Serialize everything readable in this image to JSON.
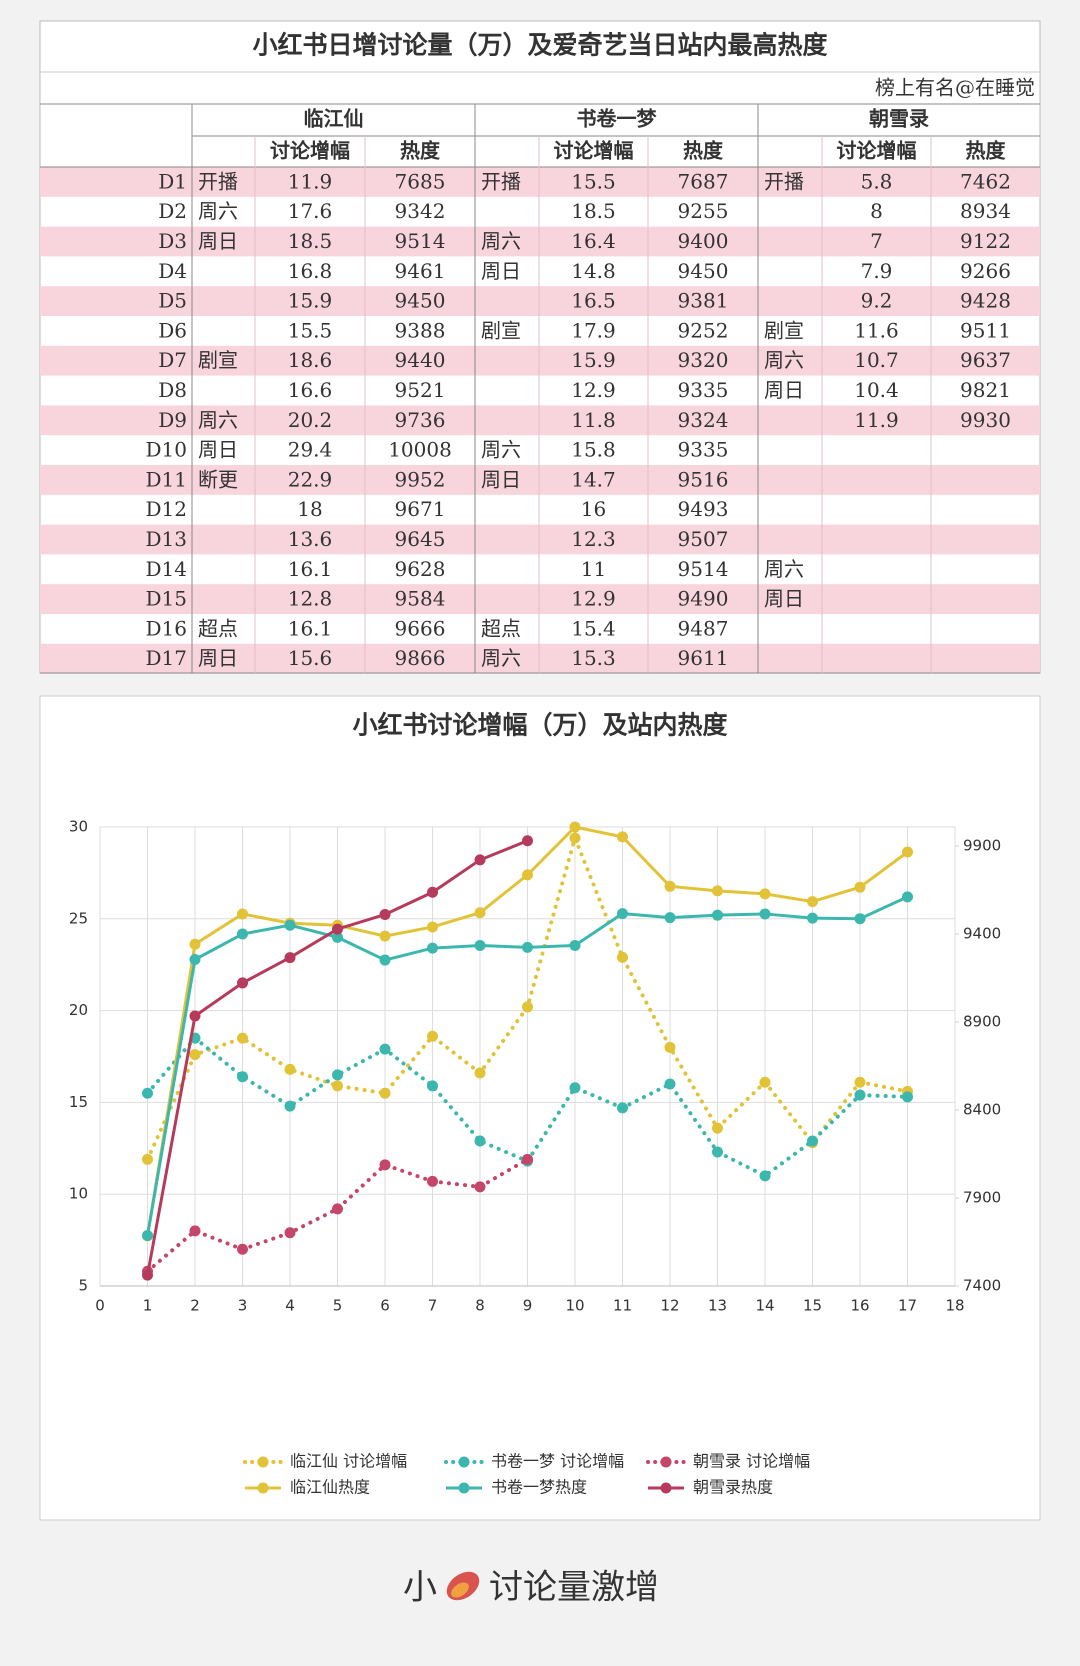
{
  "table": {
    "title": "小红书日增讨论量（万）及爱奇艺当日站内最高热度",
    "subtitle": "榜上有名@在睡觉",
    "groups": [
      "临江仙",
      "书卷一梦",
      "朝雪录"
    ],
    "subheaders": [
      "讨论增幅",
      "热度"
    ],
    "rows": [
      {
        "label": "D1",
        "cells": [
          "开播",
          11.9,
          7685,
          "开播",
          15.5,
          7687,
          "开播",
          5.8,
          7462
        ]
      },
      {
        "label": "D2",
        "cells": [
          "周六",
          17.6,
          9342,
          null,
          18.5,
          9255,
          null,
          8,
          8934
        ]
      },
      {
        "label": "D3",
        "cells": [
          "周日",
          18.5,
          9514,
          "周六",
          16.4,
          9400,
          null,
          7,
          9122
        ]
      },
      {
        "label": "D4",
        "cells": [
          null,
          16.8,
          9461,
          "周日",
          14.8,
          9450,
          null,
          7.9,
          9266
        ]
      },
      {
        "label": "D5",
        "cells": [
          null,
          15.9,
          9450,
          null,
          16.5,
          9381,
          null,
          9.2,
          9428
        ]
      },
      {
        "label": "D6",
        "cells": [
          null,
          15.5,
          9388,
          "剧宣",
          17.9,
          9252,
          "剧宣",
          11.6,
          9511
        ]
      },
      {
        "label": "D7",
        "cells": [
          "剧宣",
          18.6,
          9440,
          null,
          15.9,
          9320,
          "周六",
          10.7,
          9637
        ]
      },
      {
        "label": "D8",
        "cells": [
          null,
          16.6,
          9521,
          null,
          12.9,
          9335,
          "周日",
          10.4,
          9821
        ]
      },
      {
        "label": "D9",
        "cells": [
          "周六",
          20.2,
          9736,
          null,
          11.8,
          9324,
          null,
          11.9,
          9930
        ]
      },
      {
        "label": "D10",
        "cells": [
          "周日",
          29.4,
          10008,
          "周六",
          15.8,
          9335,
          null,
          null,
          null
        ]
      },
      {
        "label": "D11",
        "cells": [
          "断更",
          22.9,
          9952,
          "周日",
          14.7,
          9516,
          null,
          null,
          null
        ]
      },
      {
        "label": "D12",
        "cells": [
          null,
          18,
          9671,
          null,
          16,
          9493,
          null,
          null,
          null
        ]
      },
      {
        "label": "D13",
        "cells": [
          null,
          13.6,
          9645,
          null,
          12.3,
          9507,
          null,
          null,
          null
        ]
      },
      {
        "label": "D14",
        "cells": [
          null,
          16.1,
          9628,
          null,
          11,
          9514,
          "周六",
          null,
          null
        ]
      },
      {
        "label": "D15",
        "cells": [
          null,
          12.8,
          9584,
          null,
          12.9,
          9490,
          "周日",
          null,
          null
        ]
      },
      {
        "label": "D16",
        "cells": [
          "超点",
          16.1,
          9666,
          "超点",
          15.4,
          9487,
          null,
          null,
          null
        ]
      },
      {
        "label": "D17",
        "cells": [
          "周日",
          15.6,
          9866,
          "周六",
          15.3,
          9611,
          null,
          null,
          null
        ]
      }
    ]
  },
  "chart_data": {
    "type": "line",
    "title": "小红书讨论增幅（万）及站内热度",
    "x": [
      1,
      2,
      3,
      4,
      5,
      6,
      7,
      8,
      9,
      10,
      11,
      12,
      13,
      14,
      15,
      16,
      17
    ],
    "xlim": [
      0,
      18
    ],
    "xticks": [
      0,
      1,
      2,
      3,
      4,
      5,
      6,
      7,
      8,
      9,
      10,
      11,
      12,
      13,
      14,
      15,
      16,
      17,
      18
    ],
    "ylim": [
      5,
      30
    ],
    "yticks": [
      5,
      10,
      15,
      20,
      25,
      30
    ],
    "y2lim": [
      7400,
      10008
    ],
    "y2ticks": [
      7400,
      7900,
      8400,
      8900,
      9400,
      9900
    ],
    "grid": true,
    "series": [
      {
        "name": "临江仙 讨论增幅",
        "color": "#e2c237",
        "style": "dotted",
        "values": [
          11.9,
          17.6,
          18.5,
          16.8,
          15.9,
          15.5,
          18.6,
          16.6,
          20.2,
          29.4,
          22.9,
          18,
          13.6,
          16.1,
          12.8,
          16.1,
          15.6
        ]
      },
      {
        "name": "书卷一梦 讨论增幅",
        "color": "#3cb7ae",
        "style": "dotted",
        "values": [
          15.5,
          18.5,
          16.4,
          14.8,
          16.5,
          17.9,
          15.9,
          12.9,
          11.8,
          15.8,
          14.7,
          16,
          12.3,
          11,
          12.9,
          15.4,
          15.3
        ]
      },
      {
        "name": "朝雪录 讨论增幅",
        "color": "#c4476a",
        "style": "dotted",
        "values": [
          5.8,
          8,
          7,
          7.9,
          9.2,
          11.6,
          10.7,
          10.4,
          11.9,
          null,
          null,
          null,
          null,
          null,
          null,
          null,
          null
        ]
      },
      {
        "name": "临江仙热度",
        "color": "#e2c237",
        "style": "solid",
        "axis": "y2",
        "values": [
          7685,
          9342,
          9514,
          9461,
          9450,
          9388,
          9440,
          9521,
          9736,
          10008,
          9952,
          9671,
          9645,
          9628,
          9584,
          9666,
          9866
        ]
      },
      {
        "name": "书卷一梦热度",
        "color": "#3cb7ae",
        "style": "solid",
        "axis": "y2",
        "values": [
          7687,
          9255,
          9400,
          9450,
          9381,
          9252,
          9320,
          9335,
          9324,
          9335,
          9516,
          9493,
          9507,
          9514,
          9490,
          9487,
          9611
        ]
      },
      {
        "name": "朝雪录热度",
        "color": "#b53a5c",
        "style": "solid",
        "axis": "y2",
        "values": [
          7462,
          8934,
          9122,
          9266,
          9428,
          9511,
          9637,
          9821,
          9930,
          null,
          null,
          null,
          null,
          null,
          null,
          null,
          null
        ]
      }
    ]
  },
  "footer": {
    "left": "小",
    "right": "讨论量激增"
  }
}
